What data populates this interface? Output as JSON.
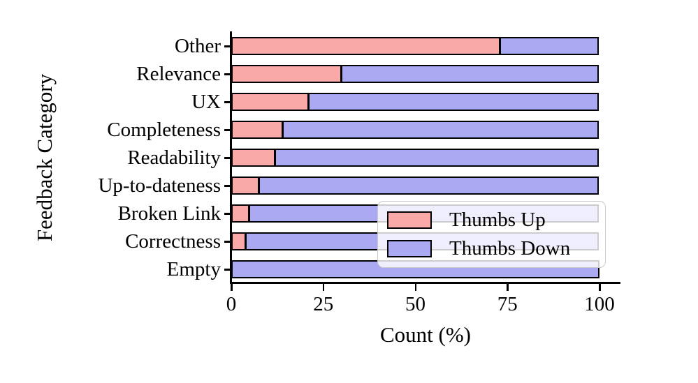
{
  "chart_data": {
    "type": "bar",
    "orientation": "horizontal",
    "stacked": true,
    "title": "",
    "xlabel": "Count (%)",
    "ylabel": "Feedback Category",
    "categories": [
      "Other",
      "Relevance",
      "UX",
      "Completeness",
      "Readability",
      "Up-to-dateness",
      "Broken Link",
      "Correctness",
      "Empty"
    ],
    "series": [
      {
        "name": "Thumbs Up",
        "color": "#faa9a9",
        "values": [
          73,
          30,
          21,
          14,
          12,
          7.5,
          5,
          4,
          0
        ]
      },
      {
        "name": "Thumbs Down",
        "color": "#aba9f2",
        "values": [
          27,
          70,
          79,
          86,
          88,
          92.5,
          95,
          96,
          100
        ]
      }
    ],
    "x_ticks": [
      0,
      25,
      50,
      75,
      100
    ],
    "xlim": [
      0,
      105.5
    ],
    "grid": false,
    "bar_edge_color": "#000000",
    "legend": {
      "position": "inside lower right",
      "background": "rgba(255,255,255,0.8)",
      "border_color": "#c9c9c9"
    }
  }
}
